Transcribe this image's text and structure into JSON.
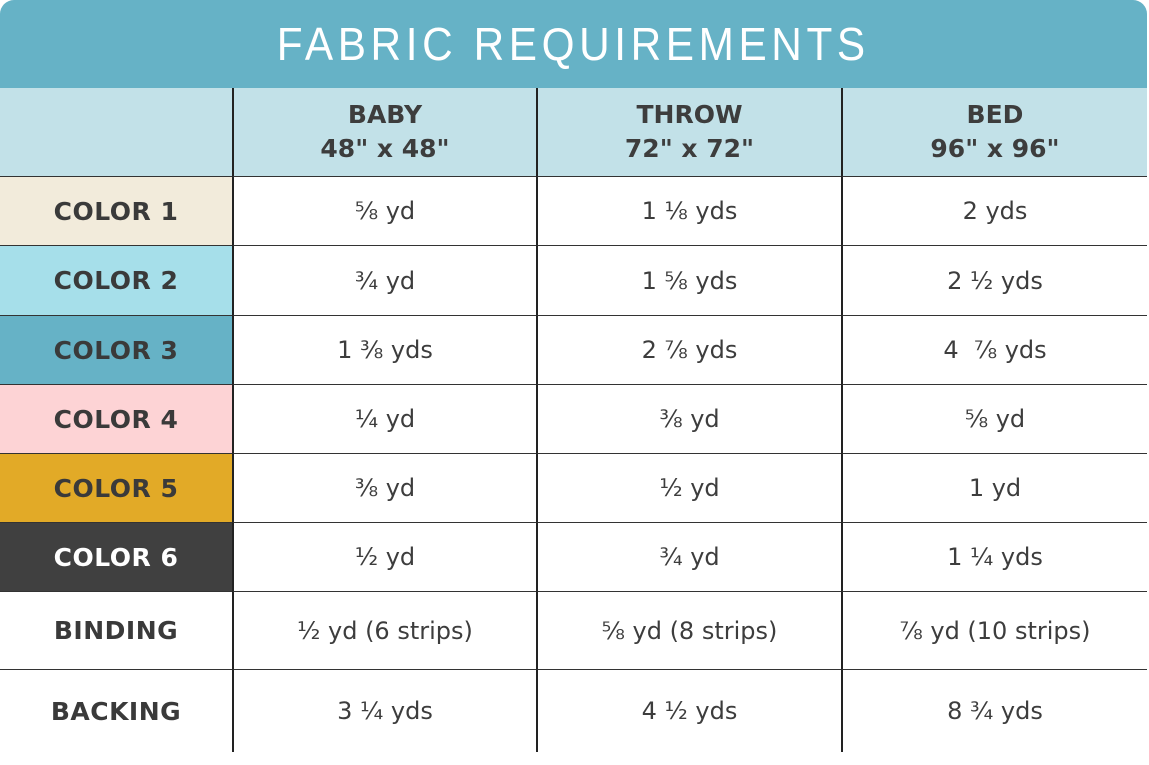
{
  "title": "FABRIC REQUIREMENTS",
  "columns": [
    {
      "name": "BABY",
      "size": "48\" x 48\""
    },
    {
      "name": "THROW",
      "size": "72\" x 72\""
    },
    {
      "name": "BED",
      "size": "96\" x 96\""
    }
  ],
  "rows": [
    {
      "label": "COLOR 1",
      "bg": "#f2ebdb",
      "fg": "#3a3a3a",
      "values": [
        "⅝ yd",
        "1 ⅛ yds",
        "2 yds"
      ]
    },
    {
      "label": "COLOR 2",
      "bg": "#a6dfea",
      "fg": "#3a3a3a",
      "values": [
        "¾ yd",
        "1 ⅝ yds",
        "2 ½ yds"
      ]
    },
    {
      "label": "COLOR 3",
      "bg": "#66b2c6",
      "fg": "#3a3a3a",
      "values": [
        "1 ⅜ yds",
        "2 ⅞ yds",
        "4  ⅞ yds"
      ]
    },
    {
      "label": "COLOR 4",
      "bg": "#fdd3d5",
      "fg": "#3a3a3a",
      "values": [
        "¼ yd",
        "⅜ yd",
        "⅝ yd"
      ]
    },
    {
      "label": "COLOR 5",
      "bg": "#e2aa27",
      "fg": "#3a3a3a",
      "values": [
        "⅜ yd",
        "½ yd",
        "1 yd"
      ]
    },
    {
      "label": "COLOR 6",
      "bg": "#404040",
      "fg": "#ffffff",
      "values": [
        "½ yd",
        "¾ yd",
        "1 ¼ yds"
      ]
    },
    {
      "label": "BINDING",
      "bg": "#ffffff",
      "fg": "#3a3a3a",
      "values": [
        "½ yd (6 strips)",
        "⅝ yd (8 strips)",
        "⅞ yd (10 strips)"
      ]
    },
    {
      "label": "BACKING",
      "bg": "#ffffff",
      "fg": "#3a3a3a",
      "values": [
        "3 ¼ yds",
        "4 ½ yds",
        "8 ¾ yds"
      ]
    }
  ]
}
